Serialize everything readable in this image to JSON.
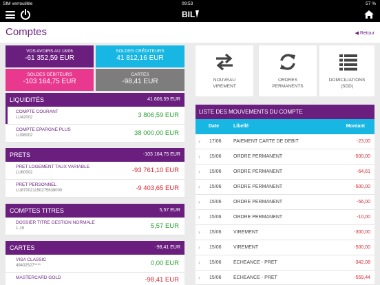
{
  "status": {
    "carrier": "SIM verrouillée",
    "time": "09:53",
    "battery": "57 %"
  },
  "header": {
    "title": "Comptes",
    "back_label": "Retour",
    "logo_text": "BIL"
  },
  "summary": {
    "avoirs_label": "VOS AVOIRS AU 18/06",
    "avoirs_value": "-61 352,59 EUR",
    "crediteurs_label": "SOLDES CRÉDITEURS",
    "crediteurs_value": "41 812,16 EUR",
    "debiteurs_label": "SOLDES DÉBITEURS",
    "debiteurs_value": "-103 164,75 EUR",
    "cartes_label": "CARTES",
    "cartes_value": "-98,41 EUR"
  },
  "sections": [
    {
      "name": "LIQUIDITÉS",
      "total": "41 806,59 EUR",
      "accounts": [
        {
          "name": "COMPTE COURANT",
          "iban": "LU42002",
          "amount": "3 806,59 EUR"
        },
        {
          "name": "COMPTE EPARGNE PLUS",
          "iban": "LU98002",
          "amount": "38 000,00 EUR"
        }
      ]
    },
    {
      "name": "PRETS",
      "total": "-103 164,75 EUR",
      "accounts": [
        {
          "name": "PRET LOGEMENT TAUX VARIABLE",
          "iban": "LU60002",
          "amount": "-93 761,10 EUR"
        },
        {
          "name": "PRET PERSONNEL",
          "iban": "LU870021150275638000",
          "amount": "-9 403,65 EUR"
        }
      ]
    },
    {
      "name": "COMPTES TITRES",
      "total": "5,57 EUR",
      "accounts": [
        {
          "name": "DOSSIER TITRE GESTION NORMALE",
          "iban": "1-15",
          "amount": "5,57 EUR"
        }
      ]
    },
    {
      "name": "CARTES",
      "total": "-98,41 EUR",
      "accounts": [
        {
          "name": "VISA CLASSIC",
          "iban": "49402527****",
          "amount": "0,00 EUR"
        },
        {
          "name": "MASTERCARD GOLD",
          "iban": "",
          "amount": "-98,41 EUR"
        }
      ]
    }
  ],
  "actions": [
    {
      "line1": "NOUVEAU",
      "line2": "VIREMENT",
      "icon": "transfer-arrows-icon"
    },
    {
      "line1": "ORDRES",
      "line2": "PERMANENTS",
      "icon": "refresh-cycle-icon"
    },
    {
      "line1": "DOMICILIATIONS",
      "line2": "(SDD)",
      "icon": "list-icon"
    }
  ],
  "movements": {
    "title": "LISTE DES MOUVEMENTS DU COMPTE",
    "col_date": "Date",
    "col_label": "Libellé",
    "col_amount": "Montant",
    "rows": [
      {
        "date": "17/06",
        "label": "PAIEMENT CARTE DE DEBIT",
        "amount": "-23,00"
      },
      {
        "date": "15/06",
        "label": "ORDRE PERMANENT",
        "amount": "-500,00"
      },
      {
        "date": "15/06",
        "label": "ORDRE PERMANENT",
        "amount": "-64,61"
      },
      {
        "date": "15/06",
        "label": "ORDRE PERMANENT",
        "amount": "-500,00"
      },
      {
        "date": "15/06",
        "label": "ORDRE PERMANENT",
        "amount": "-56,00"
      },
      {
        "date": "15/06",
        "label": "ORDRE PERMANENT",
        "amount": "-10,00"
      },
      {
        "date": "15/06",
        "label": "VIREMENT",
        "amount": "-300,00"
      },
      {
        "date": "15/06",
        "label": "VIREMENT",
        "amount": "-500,00"
      },
      {
        "date": "15/06",
        "label": "ECHEANCE - PRET",
        "amount": "-342,08"
      },
      {
        "date": "15/06",
        "label": "ECHEANCE - PRET",
        "amount": "-559,44"
      }
    ]
  },
  "colors": {
    "purple": "#6a1f7f",
    "cyan": "#18b6e3",
    "pink": "#e8398f",
    "grey": "#7d7d7d"
  }
}
